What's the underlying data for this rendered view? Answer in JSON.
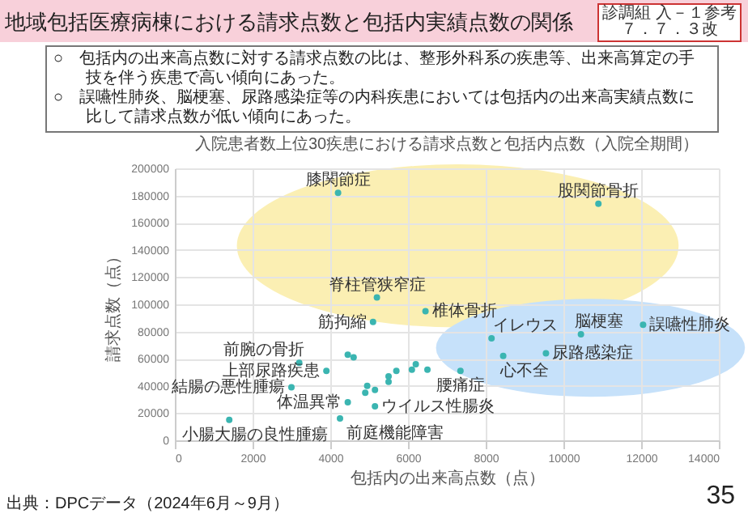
{
  "chart_data": {
    "type": "scatter",
    "title": "地域包括医療病棟における請求点数と包括内実績点数の関係",
    "subtitle": "入院患者数上位30疾患における請求点数と包括内点数（入院全期間）",
    "xlabel": "包括内の出来高点数（点）",
    "ylabel": "請求点数（点）",
    "color": "#3bb5b1",
    "marker": "circle",
    "grid": true,
    "xlim": [
      0,
      14000
    ],
    "xticks": [
      0,
      2000,
      4000,
      6000,
      8000,
      10000,
      12000,
      14000
    ],
    "ylim": [
      0,
      200000
    ],
    "yticks": [
      0,
      20000,
      40000,
      60000,
      80000,
      100000,
      120000,
      140000,
      160000,
      180000,
      200000
    ],
    "x": [
      4200,
      10900,
      5200,
      6450,
      5100,
      8150,
      10450,
      12050,
      9550,
      8450,
      7350,
      3200,
      3900,
      3000,
      4450,
      5150,
      4250,
      1400,
      4450,
      4600,
      4950,
      4900,
      5150,
      5500,
      5500,
      5700,
      6100,
      6200,
      6500
    ],
    "values": [
      182000,
      174000,
      105000,
      95000,
      87000,
      75000,
      78000,
      85000,
      64000,
      62000,
      51000,
      57000,
      51000,
      39000,
      28000,
      25000,
      16000,
      15000,
      63000,
      61000,
      40000,
      35000,
      37000,
      47000,
      43000,
      51000,
      52000,
      56000,
      52000
    ],
    "annotations": [
      "診調組 入－１参考",
      "７．７．３改",
      "○　包括内の出来高点数に対する請求点数の比は、整形外科系の疾患等、出来高算定の手技を伴う疾患で高い傾向にあった。",
      "○　誤嚥性肺炎、脳梗塞、尿路感染症等の内科疾患においては包括内の出来高実績点数に比して請求点数が低い傾向にあった。",
      "出典：DPCデータ（2024年6月～9月）",
      "35",
      {
        "text": "膝関節症",
        "x": 4200,
        "y": 182000
      },
      {
        "text": "股関節骨折",
        "x": 10900,
        "y": 174000
      },
      {
        "text": "脊柱管狭窄症",
        "x": 5200,
        "y": 105000
      },
      {
        "text": "椎体骨折",
        "x": 6450,
        "y": 95000
      },
      {
        "text": "筋拘縮",
        "x": 5100,
        "y": 87000
      },
      {
        "text": "イレウス",
        "x": 8150,
        "y": 75000
      },
      {
        "text": "脳梗塞",
        "x": 10450,
        "y": 78000
      },
      {
        "text": "誤嚥性肺炎",
        "x": 12050,
        "y": 85000
      },
      {
        "text": "尿路感染症",
        "x": 9550,
        "y": 64000
      },
      {
        "text": "心不全",
        "x": 8450,
        "y": 62000
      },
      {
        "text": "腰痛症",
        "x": 7350,
        "y": 51000
      },
      {
        "text": "前腕の骨折",
        "x": 3200,
        "y": 57000
      },
      {
        "text": "上部尿路疾患",
        "x": 3900,
        "y": 51000
      },
      {
        "text": "結腸の悪性腫瘍",
        "x": 3000,
        "y": 39000
      },
      {
        "text": "体温異常",
        "x": 4450,
        "y": 28000
      },
      {
        "text": "ウイルス性腸炎",
        "x": 5150,
        "y": 25000
      },
      {
        "text": "前庭機能障害",
        "x": 4250,
        "y": 16000
      },
      {
        "text": "小腸大腸の良性腫瘍",
        "x": 1400,
        "y": 15000
      }
    ]
  }
}
